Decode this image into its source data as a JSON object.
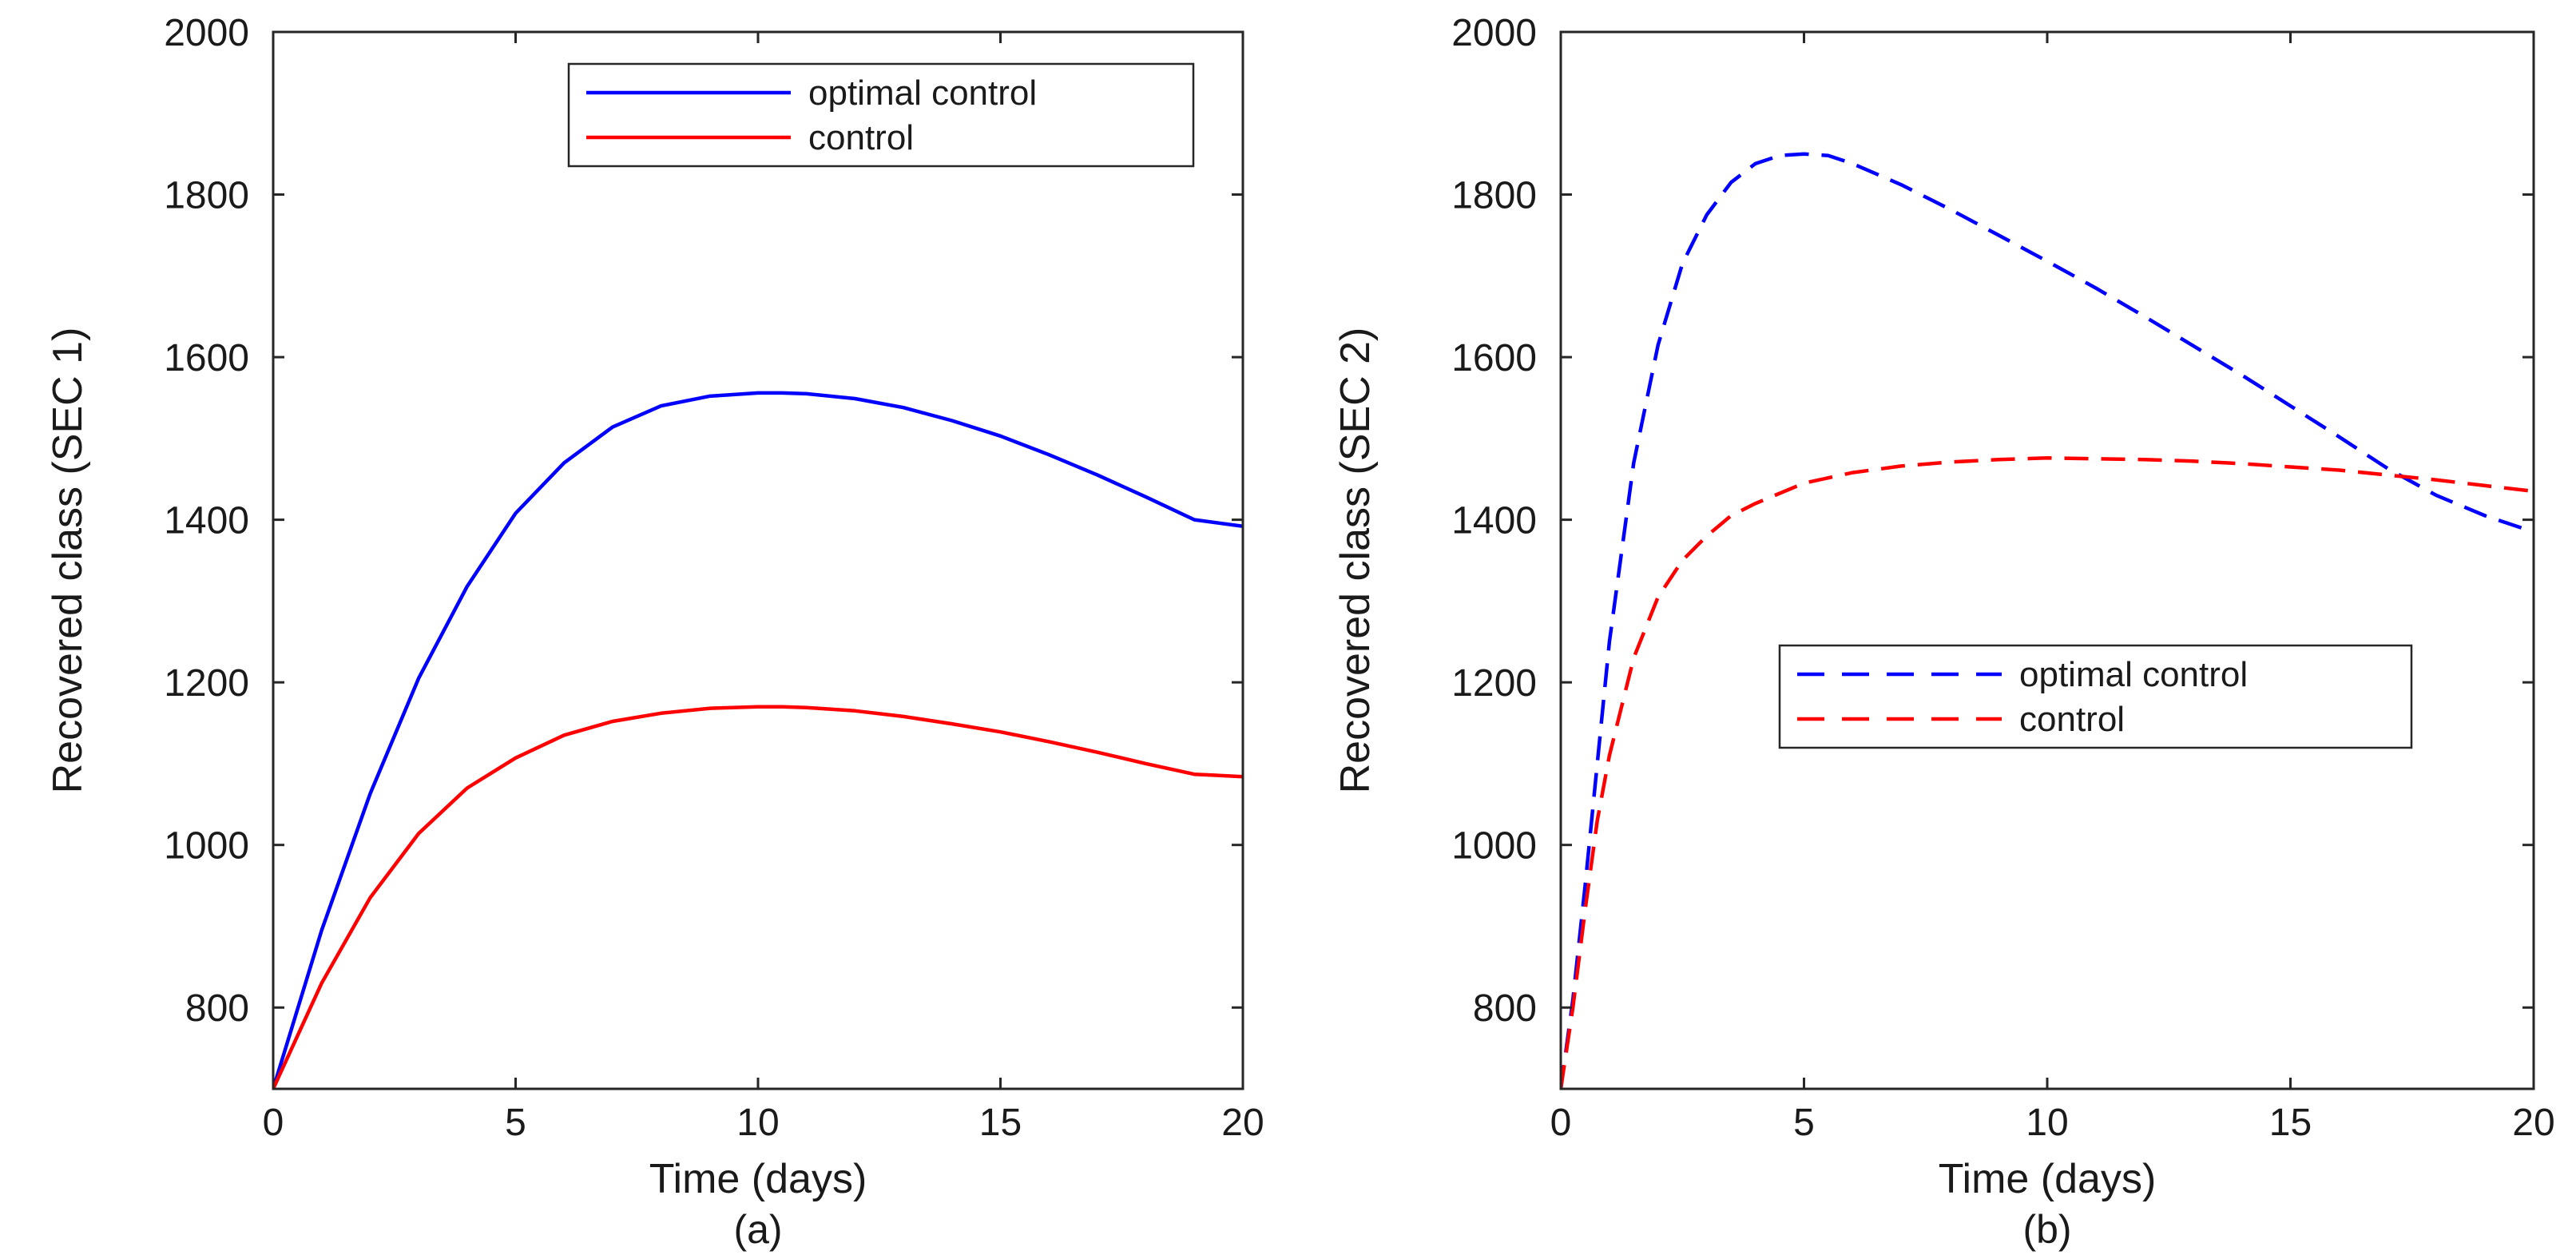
{
  "chart_data": [
    {
      "type": "line",
      "panel_id": "a",
      "caption": "(a)",
      "xlabel": "Time (days)",
      "ylabel": "Recovered class (SEC 1)",
      "xlim": [
        0,
        20
      ],
      "ylim": [
        700,
        2000
      ],
      "xticks": [
        0,
        5,
        10,
        15,
        20
      ],
      "yticks": [
        800,
        1000,
        1200,
        1400,
        1600,
        1800,
        2000
      ],
      "legend_position": "top-right",
      "series": [
        {
          "name": "optimal control",
          "color": "#0000ff",
          "style": "solid",
          "x": [
            0,
            1,
            2,
            3,
            4,
            5,
            6,
            7,
            8,
            9,
            10,
            10.5,
            11,
            12,
            13,
            14,
            15,
            16,
            17,
            18,
            19,
            20
          ],
          "y": [
            700,
            895,
            1063,
            1205,
            1318,
            1408,
            1470,
            1514,
            1540,
            1552,
            1556,
            1556,
            1555,
            1549,
            1538,
            1522,
            1503,
            1480,
            1455,
            1428,
            1400,
            1392
          ]
        },
        {
          "name": "control",
          "color": "#ff0000",
          "style": "solid",
          "x": [
            0,
            1,
            2,
            3,
            4,
            5,
            6,
            7,
            8,
            9,
            10,
            10.5,
            11,
            12,
            13,
            14,
            15,
            16,
            17,
            18,
            19,
            20
          ],
          "y": [
            700,
            830,
            935,
            1014,
            1070,
            1107,
            1135,
            1152,
            1162,
            1168,
            1170,
            1170,
            1169,
            1165,
            1158,
            1149,
            1139,
            1127,
            1114,
            1100,
            1087,
            1084
          ]
        }
      ]
    },
    {
      "type": "line",
      "panel_id": "b",
      "caption": "(b)",
      "xlabel": "Time (days)",
      "ylabel": "Recovered class (SEC 2)",
      "xlim": [
        0,
        20
      ],
      "ylim": [
        700,
        2000
      ],
      "xticks": [
        0,
        5,
        10,
        15,
        20
      ],
      "yticks": [
        800,
        1000,
        1200,
        1400,
        1600,
        1800,
        2000
      ],
      "legend_position": "center-right",
      "series": [
        {
          "name": "optimal control",
          "color": "#0000ff",
          "style": "dashed",
          "x": [
            0,
            0.25,
            0.5,
            0.75,
            1,
            1.5,
            2,
            2.5,
            3,
            3.5,
            4,
            4.5,
            5,
            5.5,
            6,
            7,
            8,
            9,
            10,
            11,
            12,
            13,
            14,
            15,
            16,
            17,
            18,
            19,
            20
          ],
          "y": [
            700,
            810,
            950,
            1100,
            1250,
            1470,
            1615,
            1715,
            1775,
            1815,
            1838,
            1848,
            1850,
            1848,
            1838,
            1812,
            1782,
            1750,
            1718,
            1685,
            1650,
            1614,
            1578,
            1540,
            1502,
            1463,
            1430,
            1405,
            1385
          ]
        },
        {
          "name": "control",
          "color": "#ff0000",
          "style": "dashed",
          "x": [
            0,
            0.25,
            0.5,
            0.75,
            1,
            1.5,
            2,
            2.5,
            3,
            3.5,
            4,
            5,
            6,
            7,
            8,
            9,
            10,
            11,
            12,
            13,
            14,
            15,
            16,
            17,
            18,
            19,
            20
          ],
          "y": [
            700,
            800,
            920,
            1030,
            1110,
            1230,
            1305,
            1350,
            1380,
            1405,
            1420,
            1445,
            1458,
            1466,
            1471,
            1474,
            1476,
            1475,
            1474,
            1472,
            1469,
            1465,
            1461,
            1455,
            1449,
            1442,
            1435
          ]
        }
      ]
    }
  ]
}
